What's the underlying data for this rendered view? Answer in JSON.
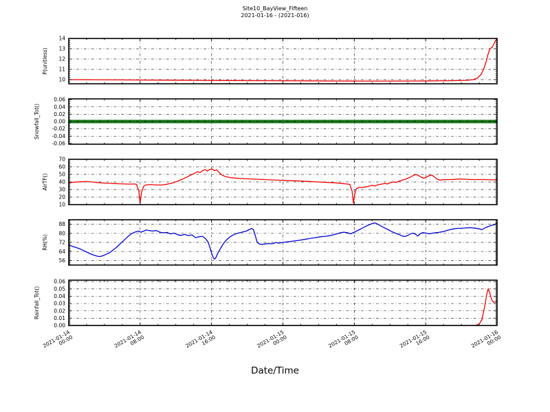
{
  "title": {
    "line1": "Site10_BayView_Fifteen",
    "line2": "2021-01-16 - (2021-016)"
  },
  "xlabel": "Date/Time",
  "x_axis": {
    "range_hours": [
      0,
      48
    ],
    "major_tick_hours": [
      0,
      8,
      16,
      24,
      32,
      40,
      48
    ],
    "minor_step_hours": 2,
    "tick_labels": [
      [
        "2021-01-14",
        "00:00"
      ],
      [
        "2021-01-14",
        "08:00"
      ],
      [
        "2021-01-14",
        "16:00"
      ],
      [
        "2021-01-15",
        "00:00"
      ],
      [
        "2021-01-15",
        "08:00"
      ],
      [
        "2021-01-15",
        "16:00"
      ],
      [
        "2021-01-16",
        "00:00"
      ]
    ]
  },
  "chart_data": [
    {
      "type": "line",
      "ylabel": "P(unitless)",
      "color": "#ee0000",
      "line_width": 1.3,
      "ylim": [
        9.6,
        14.0
      ],
      "ytick_values": [
        10,
        11,
        12,
        13,
        14
      ],
      "ytick_labels": [
        "10",
        "11",
        "12",
        "13",
        "14"
      ],
      "yminor_step": 0.2,
      "points": [
        [
          0,
          10.0
        ],
        [
          3,
          9.99
        ],
        [
          6,
          9.97
        ],
        [
          9,
          9.96
        ],
        [
          12,
          9.95
        ],
        [
          15,
          9.93
        ],
        [
          18,
          9.91
        ],
        [
          21,
          9.9
        ],
        [
          24,
          9.89
        ],
        [
          27,
          9.88
        ],
        [
          30,
          9.87
        ],
        [
          33,
          9.86
        ],
        [
          36,
          9.86
        ],
        [
          39,
          9.87
        ],
        [
          41,
          9.88
        ],
        [
          43,
          9.9
        ],
        [
          44.5,
          9.93
        ],
        [
          45.3,
          10.0
        ],
        [
          45.8,
          10.15
        ],
        [
          46.2,
          10.5
        ],
        [
          46.5,
          11.0
        ],
        [
          46.8,
          11.8
        ],
        [
          47.0,
          12.5
        ],
        [
          47.2,
          13.0
        ],
        [
          47.45,
          13.15
        ],
        [
          47.6,
          13.4
        ],
        [
          47.8,
          13.75
        ],
        [
          48,
          14.0
        ]
      ]
    },
    {
      "type": "line",
      "ylabel": "Snowfall_Tot()",
      "color": "#1a7a1a",
      "line_width": 5,
      "ylim": [
        -0.062,
        0.062
      ],
      "ytick_values": [
        -0.06,
        -0.04,
        -0.02,
        0.0,
        0.02,
        0.04,
        0.06
      ],
      "ytick_labels": [
        "-0.06",
        "-0.04",
        "-0.02",
        "0.00",
        "0.02",
        "0.04",
        "0.06"
      ],
      "yminor_step": 0.005,
      "points": [
        [
          0,
          0
        ],
        [
          48,
          0
        ]
      ]
    },
    {
      "type": "line",
      "ylabel": "AirTF()",
      "color": "#ee0000",
      "line_width": 1.3,
      "ylim": [
        10,
        70
      ],
      "ytick_values": [
        10,
        20,
        30,
        40,
        50,
        60,
        70
      ],
      "ytick_labels": [
        "10",
        "20",
        "30",
        "40",
        "50",
        "60",
        "70"
      ],
      "yminor_step": 2,
      "points": [
        [
          0,
          39
        ],
        [
          0.7,
          39.8
        ],
        [
          1.4,
          40.3
        ],
        [
          2,
          40.5
        ],
        [
          2.6,
          40
        ],
        [
          3.2,
          39.3
        ],
        [
          3.8,
          38.6
        ],
        [
          4.4,
          38.2
        ],
        [
          5,
          38
        ],
        [
          5.6,
          37.6
        ],
        [
          6.2,
          37.4
        ],
        [
          6.8,
          37.2
        ],
        [
          7.3,
          37.4
        ],
        [
          7.6,
          36.8
        ],
        [
          7.85,
          28
        ],
        [
          8,
          12
        ],
        [
          8.15,
          26
        ],
        [
          8.4,
          34.5
        ],
        [
          8.7,
          36.3
        ],
        [
          9.2,
          36.5
        ],
        [
          9.8,
          36
        ],
        [
          10.4,
          36
        ],
        [
          11,
          37
        ],
        [
          11.6,
          38.5
        ],
        [
          12.2,
          41
        ],
        [
          12.8,
          44
        ],
        [
          13.4,
          47.5
        ],
        [
          14,
          51
        ],
        [
          14.4,
          53.5
        ],
        [
          14.7,
          52.5
        ],
        [
          15,
          55
        ],
        [
          15.3,
          56.5
        ],
        [
          15.5,
          54.5
        ],
        [
          15.8,
          56.5
        ],
        [
          16.1,
          57
        ],
        [
          16.3,
          55
        ],
        [
          16.6,
          56
        ],
        [
          16.9,
          52
        ],
        [
          17.2,
          49
        ],
        [
          17.6,
          47
        ],
        [
          18,
          46
        ],
        [
          18.6,
          45.2
        ],
        [
          19.2,
          44.6
        ],
        [
          20,
          44.2
        ],
        [
          21,
          43.6
        ],
        [
          22,
          43.2
        ],
        [
          23,
          42.6
        ],
        [
          24,
          42.2
        ],
        [
          25,
          41.6
        ],
        [
          26,
          41.2
        ],
        [
          27,
          40.6
        ],
        [
          28,
          40
        ],
        [
          29,
          39.4
        ],
        [
          30,
          38.6
        ],
        [
          30.6,
          38
        ],
        [
          31.1,
          37.4
        ],
        [
          31.5,
          36.8
        ],
        [
          31.75,
          28
        ],
        [
          31.9,
          12
        ],
        [
          32.05,
          24
        ],
        [
          32.2,
          30.5
        ],
        [
          32.5,
          32.8
        ],
        [
          33,
          33
        ],
        [
          33.5,
          34
        ],
        [
          34,
          35.5
        ],
        [
          34.3,
          34.8
        ],
        [
          34.7,
          36.5
        ],
        [
          35,
          37
        ],
        [
          35.4,
          38
        ],
        [
          35.7,
          37.4
        ],
        [
          36,
          39
        ],
        [
          36.4,
          40
        ],
        [
          36.7,
          39.4
        ],
        [
          37,
          41
        ],
        [
          37.4,
          42.5
        ],
        [
          37.8,
          44
        ],
        [
          38.2,
          46
        ],
        [
          38.6,
          48.5
        ],
        [
          38.9,
          50
        ],
        [
          39.2,
          48.5
        ],
        [
          39.5,
          46.5
        ],
        [
          39.8,
          45
        ],
        [
          40.1,
          46.5
        ],
        [
          40.4,
          48.5
        ],
        [
          40.7,
          49
        ],
        [
          41,
          46.5
        ],
        [
          41.3,
          43.5
        ],
        [
          41.6,
          42.5
        ],
        [
          42,
          43
        ],
        [
          42.6,
          43.2
        ],
        [
          43.2,
          43.4
        ],
        [
          43.8,
          44
        ],
        [
          44.4,
          43.6
        ],
        [
          45,
          43.2
        ],
        [
          45.8,
          43.2
        ],
        [
          46.6,
          43.2
        ],
        [
          47.4,
          42.8
        ],
        [
          48,
          42.8
        ]
      ]
    },
    {
      "type": "line",
      "ylabel": "RH(%)",
      "color": "#0000cc",
      "line_width": 1.3,
      "ylim": [
        52,
        92
      ],
      "ytick_values": [
        56,
        64,
        72,
        80,
        88
      ],
      "ytick_labels": [
        "56",
        "64",
        "72",
        "80",
        "88"
      ],
      "yminor_step": 1,
      "points": [
        [
          0,
          70
        ],
        [
          0.4,
          68.5
        ],
        [
          0.8,
          67.5
        ],
        [
          1.2,
          66.5
        ],
        [
          1.6,
          65
        ],
        [
          2,
          63.5
        ],
        [
          2.4,
          62
        ],
        [
          2.8,
          60.8
        ],
        [
          3.2,
          59.8
        ],
        [
          3.5,
          59.5
        ],
        [
          3.8,
          60.2
        ],
        [
          4.2,
          61.5
        ],
        [
          4.6,
          63
        ],
        [
          5,
          65.5
        ],
        [
          5.4,
          68
        ],
        [
          5.8,
          71
        ],
        [
          6.2,
          74
        ],
        [
          6.6,
          77
        ],
        [
          7,
          79.5
        ],
        [
          7.4,
          81
        ],
        [
          7.8,
          82
        ],
        [
          8.1,
          81
        ],
        [
          8.4,
          82
        ],
        [
          8.7,
          83
        ],
        [
          9,
          82.5
        ],
        [
          9.4,
          82
        ],
        [
          9.8,
          82.5
        ],
        [
          10.2,
          81
        ],
        [
          10.6,
          80.5
        ],
        [
          11,
          80.8
        ],
        [
          11.4,
          79.5
        ],
        [
          11.8,
          80.2
        ],
        [
          12.2,
          78.8
        ],
        [
          12.6,
          78.2
        ],
        [
          13,
          79
        ],
        [
          13.4,
          78
        ],
        [
          13.8,
          78.6
        ],
        [
          14.2,
          76.2
        ],
        [
          14.6,
          77
        ],
        [
          15,
          77.4
        ],
        [
          15.3,
          75.5
        ],
        [
          15.6,
          72.5
        ],
        [
          15.8,
          68
        ],
        [
          16,
          62.5
        ],
        [
          16.2,
          58.5
        ],
        [
          16.35,
          57.2
        ],
        [
          16.5,
          58.8
        ],
        [
          16.7,
          62.5
        ],
        [
          17,
          66.5
        ],
        [
          17.3,
          70.5
        ],
        [
          17.6,
          73.5
        ],
        [
          18,
          76.5
        ],
        [
          18.4,
          78.5
        ],
        [
          18.9,
          80
        ],
        [
          19.4,
          81
        ],
        [
          19.9,
          82
        ],
        [
          20.2,
          83.2
        ],
        [
          20.5,
          84.3
        ],
        [
          20.7,
          83.2
        ],
        [
          20.9,
          78
        ],
        [
          21.1,
          72.5
        ],
        [
          21.3,
          70.8
        ],
        [
          21.6,
          70.2
        ],
        [
          22,
          70.6
        ],
        [
          22.4,
          71
        ],
        [
          22.8,
          70.8
        ],
        [
          23.2,
          71.8
        ],
        [
          23.6,
          71.4
        ],
        [
          24,
          72
        ],
        [
          24.6,
          72.6
        ],
        [
          25.2,
          73.2
        ],
        [
          25.8,
          73.8
        ],
        [
          26.4,
          74.6
        ],
        [
          27,
          75.4
        ],
        [
          27.6,
          76.2
        ],
        [
          28.2,
          77
        ],
        [
          28.8,
          77.4
        ],
        [
          29.4,
          78.2
        ],
        [
          30,
          79.4
        ],
        [
          30.4,
          80.4
        ],
        [
          30.8,
          81
        ],
        [
          31.2,
          80.6
        ],
        [
          31.6,
          79.6
        ],
        [
          32,
          81
        ],
        [
          32.4,
          82.6
        ],
        [
          32.8,
          84.2
        ],
        [
          33.2,
          85.8
        ],
        [
          33.6,
          87.4
        ],
        [
          34,
          88.6
        ],
        [
          34.3,
          89.2
        ],
        [
          34.6,
          88.2
        ],
        [
          35,
          86.4
        ],
        [
          35.4,
          84.8
        ],
        [
          35.8,
          83.2
        ],
        [
          36.2,
          81.6
        ],
        [
          36.6,
          80.2
        ],
        [
          37,
          79
        ],
        [
          37.4,
          77.6
        ],
        [
          37.7,
          77.2
        ],
        [
          38,
          78.2
        ],
        [
          38.3,
          79.6
        ],
        [
          38.6,
          80.2
        ],
        [
          38.9,
          79
        ],
        [
          39.1,
          77.6
        ],
        [
          39.4,
          79.8
        ],
        [
          39.7,
          80.6
        ],
        [
          40,
          80.2
        ],
        [
          40.4,
          79.6
        ],
        [
          40.8,
          80.2
        ],
        [
          41.2,
          80.6
        ],
        [
          41.6,
          81
        ],
        [
          42,
          81.6
        ],
        [
          42.4,
          82.6
        ],
        [
          42.8,
          83.4
        ],
        [
          43.2,
          84
        ],
        [
          43.6,
          84.4
        ],
        [
          44,
          84.4
        ],
        [
          44.5,
          84.8
        ],
        [
          45,
          85
        ],
        [
          45.5,
          84.6
        ],
        [
          46,
          84
        ],
        [
          46.3,
          83.2
        ],
        [
          46.6,
          84.6
        ],
        [
          47,
          86
        ],
        [
          47.4,
          87
        ],
        [
          47.7,
          87.6
        ],
        [
          48,
          89
        ]
      ]
    },
    {
      "type": "line",
      "ylabel": "Rainfall_Tot()",
      "color": "#ee0000",
      "line_width": 1.3,
      "ylim": [
        0,
        0.062
      ],
      "ytick_values": [
        0.0,
        0.01,
        0.02,
        0.03,
        0.04,
        0.05,
        0.06
      ],
      "ytick_labels": [
        "0.00",
        "0.01",
        "0.02",
        "0.03",
        "0.04",
        "0.05",
        "0.06"
      ],
      "yminor_step": 0.002,
      "points": [
        [
          0,
          0
        ],
        [
          45.4,
          0
        ],
        [
          45.7,
          0.0005
        ],
        [
          46,
          0.002
        ],
        [
          46.3,
          0.008
        ],
        [
          46.6,
          0.025
        ],
        [
          46.85,
          0.043
        ],
        [
          47,
          0.05
        ],
        [
          47.15,
          0.046
        ],
        [
          47.3,
          0.039
        ],
        [
          47.45,
          0.034
        ],
        [
          47.6,
          0.032
        ],
        [
          47.8,
          0.032
        ],
        [
          48,
          0.033
        ]
      ]
    }
  ]
}
